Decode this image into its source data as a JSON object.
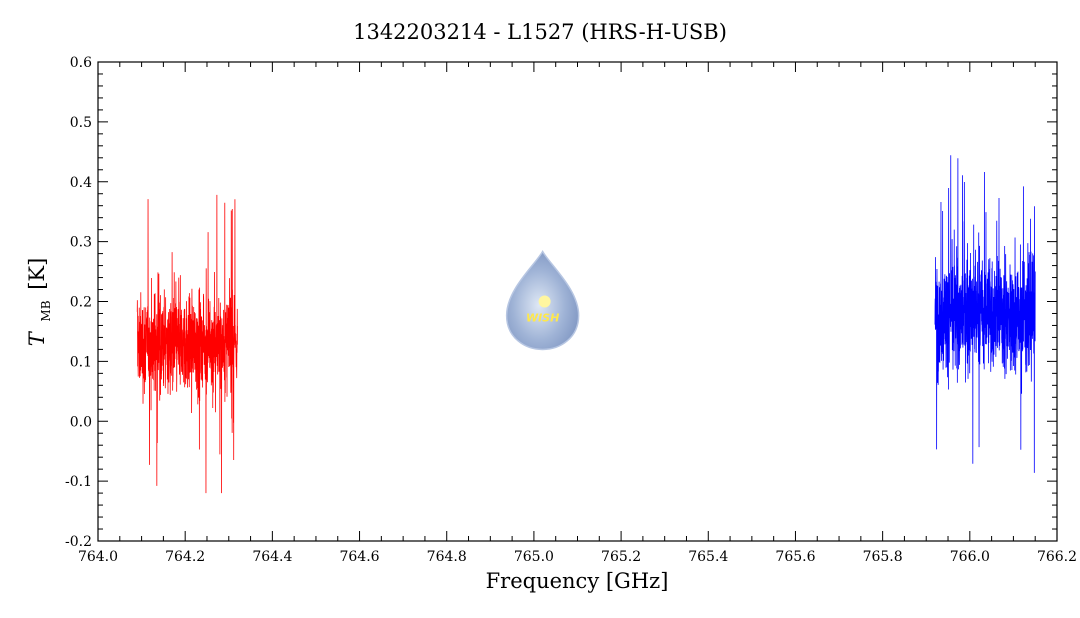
{
  "chart_data": {
    "type": "line",
    "title": "1342203214 - L1527 (HRS-H-USB)",
    "xlabel": "Frequency [GHz]",
    "ylabel_main": "T",
    "ylabel_sub": "MB",
    "ylabel_unit": "[K]",
    "xlim": [
      764.0,
      766.2
    ],
    "ylim": [
      -0.2,
      0.6
    ],
    "xticks": [
      "764.0",
      "764.2",
      "764.4",
      "764.6",
      "764.8",
      "765.0",
      "765.2",
      "765.4",
      "765.6",
      "765.8",
      "766.0",
      "766.2"
    ],
    "yticks": [
      "-0.2",
      "-0.1",
      "0.0",
      "0.1",
      "0.2",
      "0.3",
      "0.4",
      "0.5",
      "0.6"
    ],
    "grid": false,
    "series": [
      {
        "color": "#ff0000",
        "x_range": [
          764.09,
          764.32
        ],
        "mean": 0.13,
        "min": -0.12,
        "max": 0.42
      },
      {
        "color": "#0000ff",
        "x_range": [
          765.92,
          766.15
        ],
        "mean": 0.18,
        "min": -0.1,
        "max": 0.51
      }
    ],
    "watermark": {
      "text": "WISH",
      "x": 765.02,
      "y": 0.19
    }
  }
}
